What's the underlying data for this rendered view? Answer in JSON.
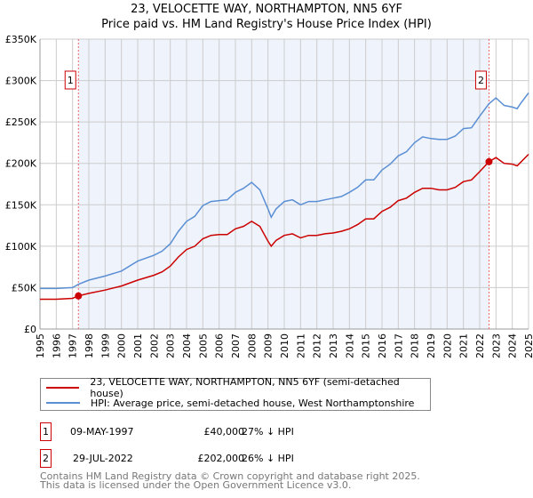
{
  "title": "23, VELOCETTE WAY, NORTHAMPTON, NN5 6YF",
  "subtitle": "Price paid vs. HM Land Registry's House Price Index (HPI)",
  "chart_data": {
    "type": "line",
    "title": "23, VELOCETTE WAY, NORTHAMPTON, NN5 6YF",
    "subtitle": "Price paid vs. HM Land Registry's House Price Index (HPI)",
    "xlim": [
      1995,
      2025
    ],
    "ylim": [
      0,
      350000
    ],
    "grid": true,
    "y_ticks": [
      {
        "v": 0,
        "label": "£0"
      },
      {
        "v": 50000,
        "label": "£50K"
      },
      {
        "v": 100000,
        "label": "£100K"
      },
      {
        "v": 150000,
        "label": "£150K"
      },
      {
        "v": 200000,
        "label": "£200K"
      },
      {
        "v": 250000,
        "label": "£250K"
      },
      {
        "v": 300000,
        "label": "£300K"
      },
      {
        "v": 350000,
        "label": "£350K"
      }
    ],
    "x_ticks": [
      "1995",
      "1996",
      "1997",
      "1998",
      "1999",
      "2000",
      "2001",
      "2002",
      "2003",
      "2004",
      "2005",
      "2006",
      "2007",
      "2008",
      "2009",
      "2010",
      "2011",
      "2012",
      "2013",
      "2014",
      "2015",
      "2016",
      "2017",
      "2018",
      "2019",
      "2020",
      "2021",
      "2022",
      "2023",
      "2024",
      "2025"
    ],
    "legend_placement": "below",
    "series": [
      {
        "name": "23, VELOCETTE WAY, NORTHAMPTON, NN5 6YF (semi-detached house)",
        "color": "#cc0000",
        "x": [
          1995,
          1996,
          1997,
          1997.36,
          1998,
          1999,
          2000,
          2001,
          2002,
          2002.5,
          2003,
          2003.5,
          2004,
          2004.5,
          2005,
          2005.5,
          2006,
          2006.5,
          2007,
          2007.5,
          2008,
          2008.5,
          2009,
          2009.2,
          2009.5,
          2010,
          2010.5,
          2011,
          2011.5,
          2012,
          2012.5,
          2013,
          2013.5,
          2014,
          2014.5,
          2015,
          2015.5,
          2016,
          2016.5,
          2017,
          2017.5,
          2018,
          2018.5,
          2019,
          2019.5,
          2020,
          2020.5,
          2021,
          2021.5,
          2022,
          2022.57,
          2023,
          2023.5,
          2024,
          2024.3,
          2024.5,
          2025
        ],
        "y": [
          36000,
          36000,
          37000,
          40000,
          43000,
          47000,
          52000,
          59000,
          65000,
          69000,
          76000,
          87000,
          96000,
          100000,
          109000,
          113000,
          114000,
          114000,
          121000,
          124000,
          130000,
          124000,
          106000,
          100000,
          107000,
          113000,
          115000,
          110000,
          113000,
          113000,
          115000,
          116000,
          118000,
          121000,
          126000,
          133000,
          133000,
          142000,
          147000,
          155000,
          158000,
          165000,
          170000,
          170000,
          168000,
          168000,
          171000,
          178000,
          180000,
          190000,
          202000,
          207000,
          200000,
          199000,
          197000,
          201000,
          211000
        ]
      },
      {
        "name": "HPI: Average price, semi-detached house, West Northamptonshire",
        "color": "#5b8fd4",
        "x": [
          1995,
          1996,
          1997,
          1997.36,
          1998,
          1999,
          2000,
          2001,
          2002,
          2002.5,
          2003,
          2003.5,
          2004,
          2004.5,
          2005,
          2005.5,
          2006,
          2006.5,
          2007,
          2007.5,
          2008,
          2008.5,
          2009,
          2009.2,
          2009.5,
          2010,
          2010.5,
          2011,
          2011.5,
          2012,
          2012.5,
          2013,
          2013.5,
          2014,
          2014.5,
          2015,
          2015.5,
          2016,
          2016.5,
          2017,
          2017.5,
          2018,
          2018.5,
          2019,
          2019.5,
          2020,
          2020.5,
          2021,
          2021.5,
          2022,
          2022.57,
          2023,
          2023.5,
          2024,
          2024.3,
          2024.5,
          2025
        ],
        "y": [
          49000,
          49000,
          50000,
          54000,
          59000,
          64000,
          70000,
          82000,
          89000,
          94000,
          103000,
          118000,
          130000,
          136000,
          149000,
          154000,
          155000,
          156000,
          165000,
          170000,
          177000,
          168000,
          145000,
          135000,
          145000,
          154000,
          156000,
          150000,
          154000,
          154000,
          156000,
          158000,
          160000,
          165000,
          171000,
          180000,
          180000,
          192000,
          199000,
          209000,
          214000,
          225000,
          232000,
          230000,
          229000,
          229000,
          233000,
          242000,
          243000,
          257000,
          272000,
          279000,
          270000,
          268000,
          266000,
          272000,
          285000
        ]
      }
    ],
    "annotations": [
      {
        "label": "1",
        "x": 1997.36,
        "y": 40000
      },
      {
        "label": "2",
        "x": 2022.57,
        "y": 202000
      }
    ]
  },
  "legend": {
    "red": "23, VELOCETTE WAY, NORTHAMPTON, NN5 6YF (semi-detached house)",
    "blue": "HPI: Average price, semi-detached house, West Northamptonshire"
  },
  "transactions": [
    {
      "num": "1",
      "date": "09-MAY-1997",
      "price": "£40,000",
      "delta": "27% ↓ HPI"
    },
    {
      "num": "2",
      "date": "29-JUL-2022",
      "price": "£202,000",
      "delta": "26% ↓ HPI"
    }
  ],
  "footer": [
    "Contains HM Land Registry data © Crown copyright and database right 2025.",
    "This data is licensed under the Open Government Licence v3.0."
  ]
}
